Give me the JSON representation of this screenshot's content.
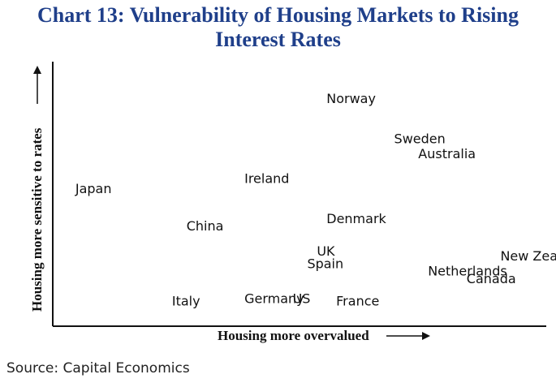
{
  "chart_data": {
    "type": "scatter",
    "title": [
      "Chart 13: Vulnerability of Housing Markets to Rising",
      "Interest Rates"
    ],
    "xlabel": "Housing more overvalued",
    "ylabel": "Housing more sensitive to rates",
    "xlim": [
      0,
      100
    ],
    "ylim": [
      0,
      100
    ],
    "grid": false,
    "points": [
      {
        "label": "Norway",
        "x": 55,
        "y": 86
      },
      {
        "label": "Sweden",
        "x": 69,
        "y": 70
      },
      {
        "label": "Australia",
        "x": 74,
        "y": 64
      },
      {
        "label": "Japan",
        "x": 3,
        "y": 50
      },
      {
        "label": "Ireland",
        "x": 38,
        "y": 54
      },
      {
        "label": "China",
        "x": 26,
        "y": 35
      },
      {
        "label": "Denmark",
        "x": 55,
        "y": 38
      },
      {
        "label": "UK",
        "x": 53,
        "y": 25
      },
      {
        "label": "Spain",
        "x": 51,
        "y": 20
      },
      {
        "label": "New Zealand",
        "x": 91,
        "y": 23
      },
      {
        "label": "Netherlands",
        "x": 76,
        "y": 17
      },
      {
        "label": "Canada",
        "x": 84,
        "y": 14
      },
      {
        "label": "Italy",
        "x": 23,
        "y": 5
      },
      {
        "label": "Germany",
        "x": 38,
        "y": 6
      },
      {
        "label": "US",
        "x": 48,
        "y": 6
      },
      {
        "label": "France",
        "x": 57,
        "y": 5
      }
    ]
  },
  "source": "Source: Capital Economics"
}
